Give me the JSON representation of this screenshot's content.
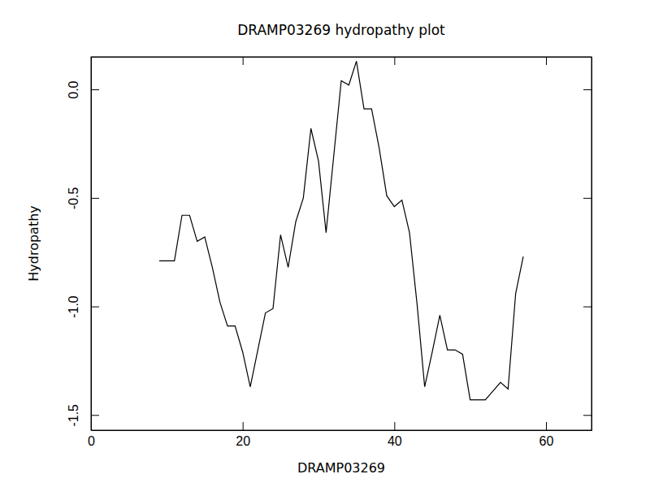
{
  "chart_data": {
    "type": "line",
    "title": "DRAMP03269 hydropathy plot",
    "x_label": "DRAMP03269",
    "y_label": "Hydropathy",
    "x": [
      9,
      10,
      11,
      12,
      13,
      14,
      15,
      16,
      17,
      18,
      19,
      20,
      21,
      22,
      23,
      24,
      25,
      26,
      27,
      28,
      29,
      30,
      31,
      32,
      33,
      34,
      35,
      36,
      37,
      38,
      39,
      40,
      41,
      42,
      43,
      44,
      45,
      46,
      47,
      48,
      49,
      50,
      51,
      52,
      53,
      54,
      55,
      56,
      57
    ],
    "values": [
      -0.79,
      -0.79,
      -0.79,
      -0.58,
      -0.58,
      -0.7,
      -0.68,
      -0.82,
      -0.98,
      -1.09,
      -1.09,
      -1.21,
      -1.37,
      -1.2,
      -1.03,
      -1.01,
      -0.67,
      -0.82,
      -0.61,
      -0.5,
      -0.18,
      -0.33,
      -0.66,
      -0.31,
      0.04,
      0.02,
      0.13,
      -0.09,
      -0.09,
      -0.27,
      -0.49,
      -0.54,
      -0.51,
      -0.66,
      -0.99,
      -1.37,
      -1.21,
      -1.04,
      -1.2,
      -1.2,
      -1.22,
      -1.43,
      -1.43,
      -1.43,
      -1.39,
      -1.35,
      -1.38,
      -0.94,
      -0.77
    ],
    "color": "#000000",
    "xlim": [
      0,
      66
    ],
    "xticks": [
      0,
      20,
      40,
      60
    ],
    "ylim": [
      -1.57,
      0.15
    ],
    "yticks": [
      -1.5,
      {
        "value": -1.0,
        "label": "-1.0"
      },
      -0.5,
      {
        "value": 0.0,
        "label": "0.0"
      }
    ],
    "grid": false
  }
}
